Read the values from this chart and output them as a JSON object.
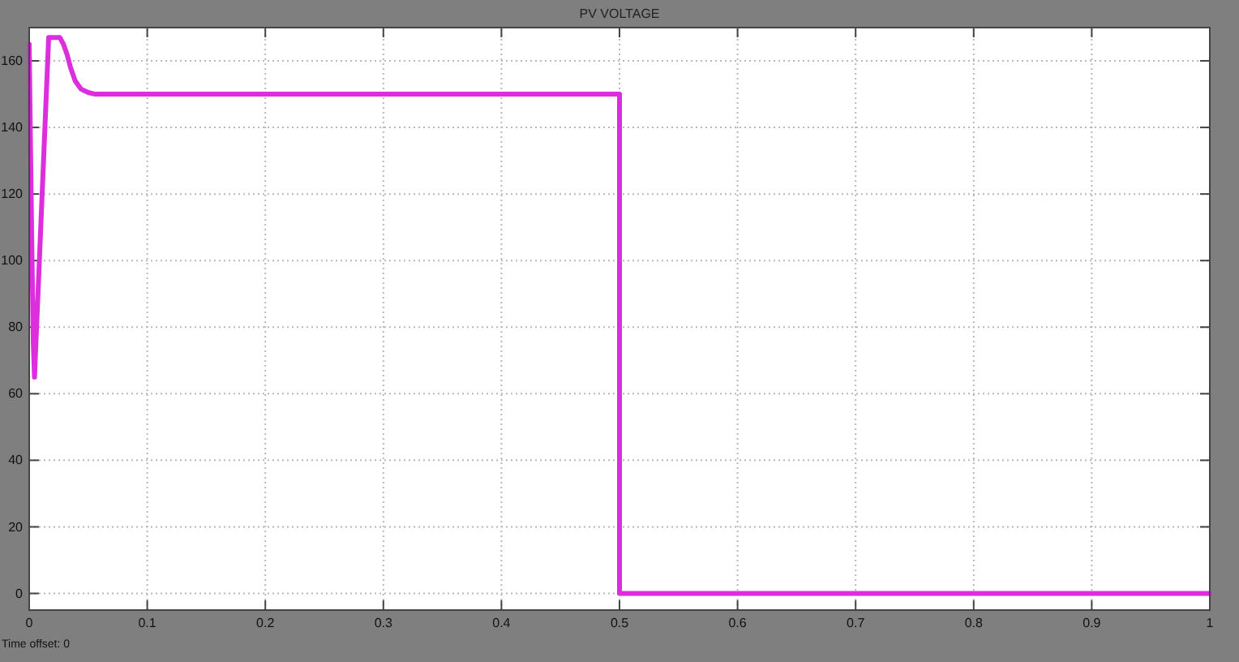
{
  "chart_data": {
    "type": "line",
    "title": "PV VOLTAGE",
    "annotations": [
      "Time offset: 0"
    ],
    "xlim": [
      0,
      1
    ],
    "xticks": [
      0,
      0.1,
      0.2,
      0.3,
      0.4,
      0.5,
      0.6,
      0.7,
      0.8,
      0.9,
      1
    ],
    "ylim": [
      -5,
      170
    ],
    "yticks": [
      0,
      20,
      40,
      60,
      80,
      100,
      120,
      140,
      160
    ],
    "grid": true,
    "line_style": "solid",
    "series": [
      {
        "color": "#dc2edc",
        "x": [
          0,
          0.002,
          0.0035,
          0.0045,
          0.0165,
          0.026,
          0.029,
          0.032,
          0.035,
          0.039,
          0.044,
          0.05,
          0.056,
          0.5,
          0.5,
          1
        ],
        "values": [
          165,
          110,
          75,
          65,
          167,
          167,
          165,
          162,
          158,
          154,
          151.5,
          150.5,
          150,
          150,
          0,
          0
        ]
      }
    ]
  }
}
